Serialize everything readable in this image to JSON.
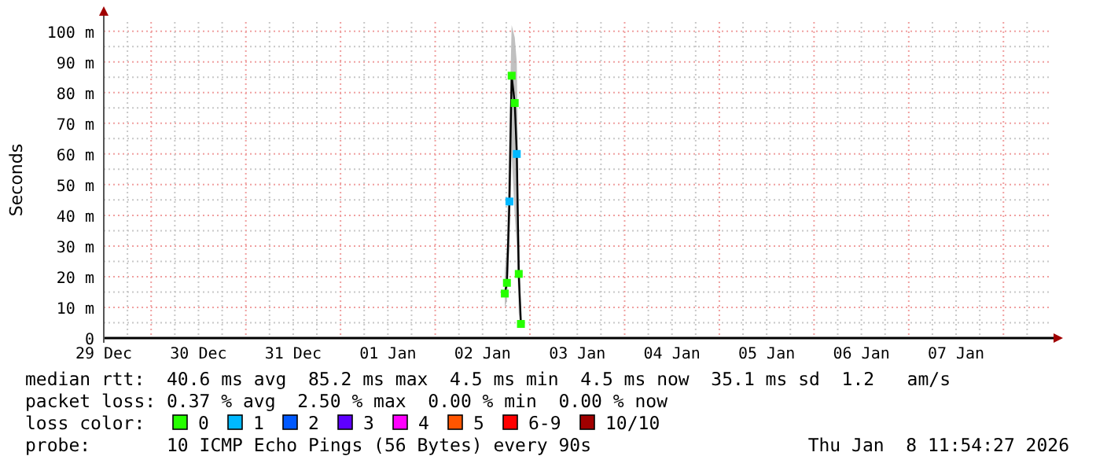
{
  "chart_data": {
    "type": "line",
    "ylabel": "Seconds",
    "legend_title": "loss color:",
    "legend": "bottom",
    "grid": true,
    "marker": "square",
    "xlim": [
      "2025-12-29T12:00",
      "2026-01-08T11:54"
    ],
    "xticks": [
      {
        "value": "2025-12-29T12:00",
        "label": "29 Dec"
      },
      {
        "value": "2025-12-30T00:00",
        "label": null
      },
      {
        "value": "2025-12-30T12:00",
        "label": "30 Dec"
      },
      {
        "value": "2025-12-31T00:00",
        "label": null
      },
      {
        "value": "2025-12-31T12:00",
        "label": "31 Dec"
      },
      {
        "value": "2026-01-01T00:00",
        "label": null
      },
      {
        "value": "2026-01-01T12:00",
        "label": "01 Jan"
      },
      {
        "value": "2026-01-02T00:00",
        "label": null
      },
      {
        "value": "2026-01-02T12:00",
        "label": "02 Jan"
      },
      {
        "value": "2026-01-03T00:00",
        "label": null
      },
      {
        "value": "2026-01-03T12:00",
        "label": "03 Jan"
      },
      {
        "value": "2026-01-04T00:00",
        "label": null
      },
      {
        "value": "2026-01-04T12:00",
        "label": "04 Jan"
      },
      {
        "value": "2026-01-05T00:00",
        "label": null
      },
      {
        "value": "2026-01-05T12:00",
        "label": "05 Jan"
      },
      {
        "value": "2026-01-06T00:00",
        "label": null
      },
      {
        "value": "2026-01-06T12:00",
        "label": "06 Jan"
      },
      {
        "value": "2026-01-07T00:00",
        "label": null
      },
      {
        "value": "2026-01-07T12:00",
        "label": "07 Jan"
      },
      {
        "value": "2026-01-08T00:00",
        "label": null
      }
    ],
    "ylim": [
      0,
      103
    ],
    "yticks": [
      {
        "value": 0,
        "label": "0"
      },
      {
        "value": 10,
        "label": "10 m"
      },
      {
        "value": 20,
        "label": "20 m"
      },
      {
        "value": 30,
        "label": "30 m"
      },
      {
        "value": 40,
        "label": "40 m"
      },
      {
        "value": 50,
        "label": "50 m"
      },
      {
        "value": 60,
        "label": "60 m"
      },
      {
        "value": 70,
        "label": "70 m"
      },
      {
        "value": 80,
        "label": "80 m"
      },
      {
        "value": 90,
        "label": "90 m"
      },
      {
        "value": 100,
        "label": "100 m"
      }
    ],
    "series": [
      {
        "color": "#000000",
        "x": [
          "2026-01-02T17:38",
          "2026-01-02T18:10",
          "2026-01-02T18:48",
          "2026-01-02T19:22",
          "2026-01-02T20:09",
          "2026-01-02T20:40",
          "2026-01-02T21:10",
          "2026-01-02T21:43"
        ],
        "values": [
          14.5,
          18,
          44.5,
          85.5,
          76.6,
          60,
          20.9,
          4.6
        ],
        "colors": [
          "#26ff00",
          "#26ff00",
          "#00b8ff",
          "#26ff00",
          "#26ff00",
          "#00b8ff",
          "#26ff00",
          "#26ff00"
        ],
        "lower": [
          10,
          12,
          30,
          60,
          40,
          30,
          8,
          3
        ],
        "upper": [
          22,
          30,
          70,
          102,
          98,
          90,
          40,
          8
        ]
      },
      {
        "name": "0",
        "color": "#26ff00"
      },
      {
        "name": "1",
        "color": "#00b8ff"
      },
      {
        "name": "2",
        "color": "#0059ff"
      },
      {
        "name": "3",
        "color": "#5e00ff"
      },
      {
        "name": "4",
        "color": "#ff00fe"
      },
      {
        "name": "5",
        "color": "#ff5500"
      },
      {
        "name": "6-9",
        "color": "#ff0000"
      },
      {
        "name": "10/10",
        "color": "#a10000"
      }
    ],
    "annotations": [
      "median rtt:  40.6 ms avg  85.2 ms max  4.5 ms min  4.5 ms now  35.1 ms sd  1.2   am/s",
      "packet loss: 0.37 % avg  2.50 % max  0.00 % min  0.00 % now",
      "probe:       10 ICMP Echo Pings (56 Bytes) every 90s",
      "Thu Jan  8 11:54:27 2026"
    ]
  }
}
